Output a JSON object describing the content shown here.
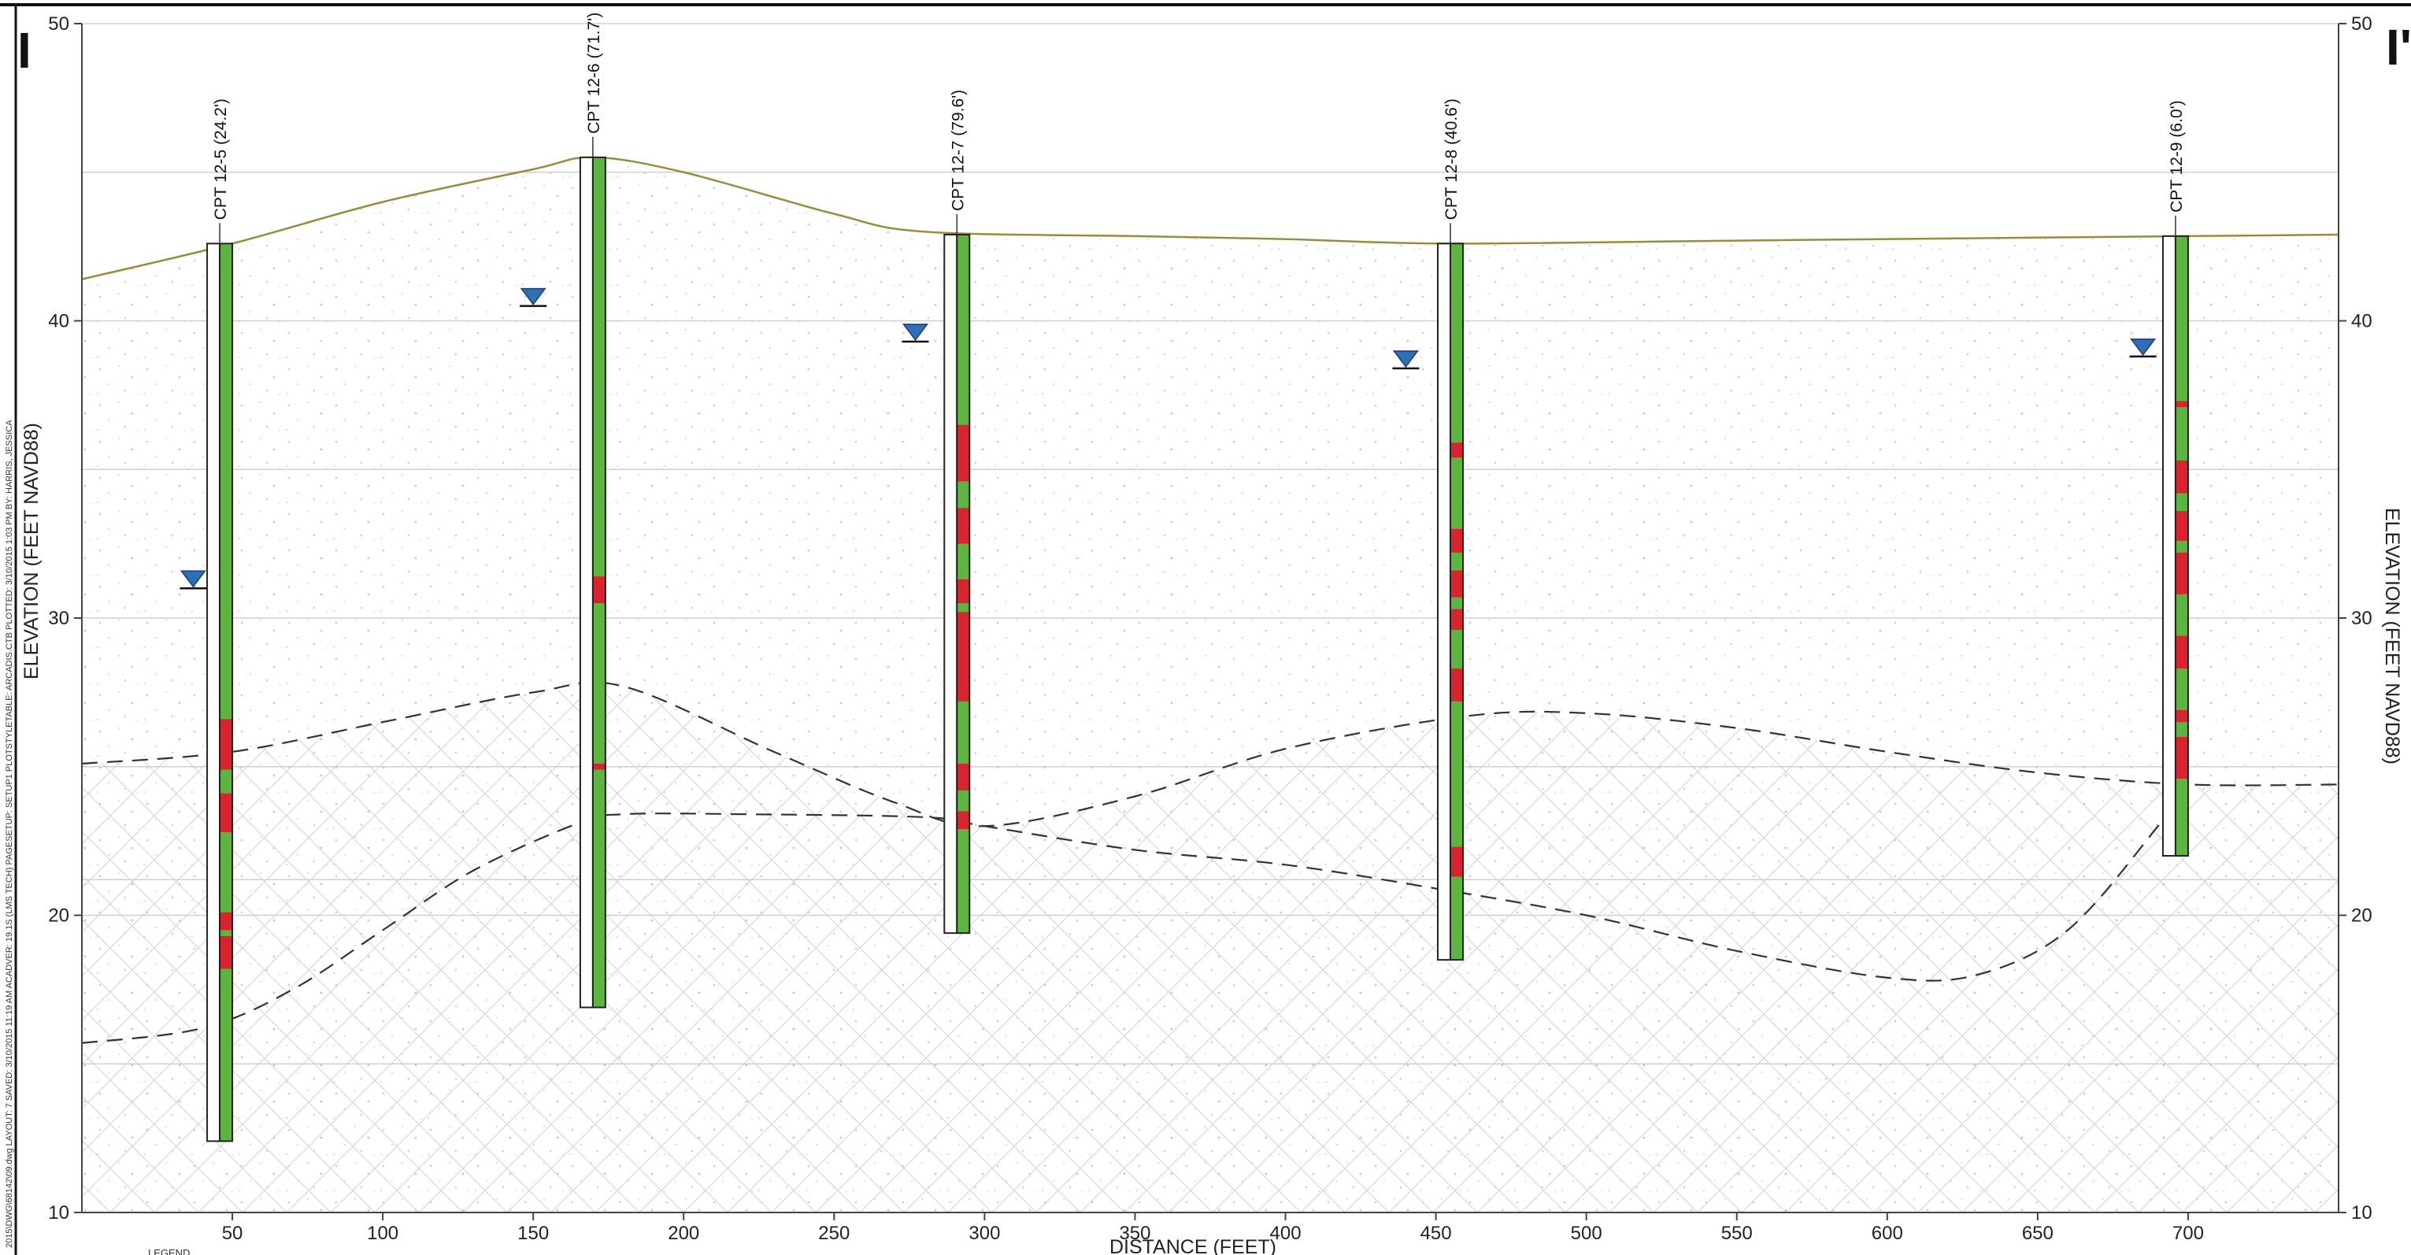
{
  "section": {
    "left_letter": "I",
    "right_letter": "I'",
    "left_axis_title": "ELEVATION (FEET NAVD88)",
    "right_axis_title": "ELEVATION (FEET NAVD88)",
    "x_axis_title": "DISTANCE (FEET)",
    "legend_label": "LEGEND",
    "margin_note": "2015\\DWG\\68142\\09.dwg   LAYOUT: 7   SAVED: 3/10/2015 11:19 AM   ACADVER: 19.1S (LMS TECH)   PAGESETUP: SETUP1   PLOTSTYLETABLE: ARCADIS.CTB   PLOTTED: 3/10/2015 1:03 PM   BY: HARRIS, JESSICA"
  },
  "colors": {
    "clay": "#d9232e",
    "sand": "#5cb53f",
    "ground": "#9a8c3c",
    "water_marker": "#2e6fb7",
    "grid": "#cfcfcf",
    "contact": "#333333"
  },
  "chart_data": {
    "type": "cross-section",
    "xlabel": "DISTANCE (FEET)",
    "ylabel": "ELEVATION (FEET NAVD88)",
    "xlim": [
      0,
      750
    ],
    "ylim": [
      10,
      50
    ],
    "x_ticks": [
      50,
      100,
      150,
      200,
      250,
      300,
      350,
      400,
      450,
      500,
      550,
      600,
      650,
      700
    ],
    "y_ticks": [
      10,
      20,
      30,
      40,
      50
    ],
    "y_gridlines": [
      15,
      20,
      21.2,
      25,
      30,
      35,
      40,
      45,
      50
    ],
    "ground_surface": [
      [
        0,
        41.4
      ],
      [
        50,
        42.6
      ],
      [
        100,
        44.0
      ],
      [
        150,
        45.1
      ],
      [
        170,
        45.5
      ],
      [
        200,
        45.0
      ],
      [
        250,
        43.6
      ],
      [
        280,
        43.0
      ],
      [
        350,
        42.85
      ],
      [
        400,
        42.75
      ],
      [
        455,
        42.6
      ],
      [
        550,
        42.7
      ],
      [
        650,
        42.8
      ],
      [
        700,
        42.85
      ],
      [
        750,
        42.9
      ]
    ],
    "contacts": [
      {
        "points": [
          [
            0,
            25.1
          ],
          [
            50,
            25.5
          ],
          [
            100,
            26.5
          ],
          [
            150,
            27.5
          ],
          [
            180,
            27.7
          ],
          [
            230,
            25.5
          ],
          [
            270,
            23.8
          ],
          [
            300,
            23.0
          ],
          [
            350,
            24.0
          ],
          [
            400,
            25.6
          ],
          [
            460,
            26.7
          ],
          [
            500,
            26.8
          ],
          [
            550,
            26.3
          ],
          [
            600,
            25.5
          ],
          [
            650,
            24.8
          ],
          [
            700,
            24.4
          ],
          [
            750,
            24.4
          ]
        ]
      },
      {
        "points": [
          [
            0,
            15.7
          ],
          [
            40,
            16.2
          ],
          [
            70,
            17.5
          ],
          [
            100,
            19.5
          ],
          [
            130,
            21.5
          ],
          [
            165,
            23.1
          ],
          [
            180,
            23.4
          ],
          [
            220,
            23.4
          ],
          [
            280,
            23.3
          ],
          [
            300,
            23.0
          ],
          [
            350,
            22.2
          ],
          [
            400,
            21.7
          ],
          [
            450,
            20.9
          ],
          [
            500,
            20.0
          ],
          [
            550,
            18.8
          ],
          [
            600,
            17.9
          ],
          [
            630,
            18.0
          ],
          [
            660,
            19.5
          ],
          [
            690,
            23.0
          ],
          [
            700,
            24.4
          ]
        ]
      }
    ],
    "water_levels": [
      {
        "x": 37,
        "elevation": 31.0
      },
      {
        "x": 150,
        "elevation": 40.5
      },
      {
        "x": 277,
        "elevation": 39.3
      },
      {
        "x": 440,
        "elevation": 38.4
      },
      {
        "x": 685,
        "elevation": 38.8
      }
    ],
    "cpts": [
      {
        "id": "CPT 12-5",
        "depth_text": "(24.2')",
        "x": 50,
        "top": 42.6,
        "bottom": 12.4,
        "clay_intervals": [
          [
            24.9,
            26.6
          ],
          [
            22.8,
            24.1
          ],
          [
            19.5,
            20.1
          ],
          [
            18.2,
            19.3
          ]
        ]
      },
      {
        "id": "CPT 12-6",
        "depth_text": "(71.7')",
        "x": 174,
        "top": 45.5,
        "bottom": 16.9,
        "clay_intervals": [
          [
            30.5,
            31.4
          ],
          [
            24.9,
            25.1
          ]
        ]
      },
      {
        "id": "CPT 12-7",
        "depth_text": "(79.6')",
        "x": 295,
        "top": 42.9,
        "bottom": 19.4,
        "clay_intervals": [
          [
            34.6,
            36.5
          ],
          [
            32.5,
            33.7
          ],
          [
            30.5,
            31.3
          ],
          [
            27.2,
            30.2
          ],
          [
            24.2,
            25.1
          ],
          [
            22.9,
            23.5
          ]
        ]
      },
      {
        "id": "CPT 12-8",
        "depth_text": "(40.6')",
        "x": 459,
        "top": 42.6,
        "bottom": 18.5,
        "clay_intervals": [
          [
            35.4,
            35.9
          ],
          [
            32.2,
            33.0
          ],
          [
            30.7,
            31.6
          ],
          [
            29.6,
            30.3
          ],
          [
            27.2,
            28.3
          ],
          [
            21.3,
            22.3
          ]
        ]
      },
      {
        "id": "CPT 12-9",
        "depth_text": "(6.0')",
        "x": 700,
        "top": 42.85,
        "bottom": 22.0,
        "clay_intervals": [
          [
            37.1,
            37.3
          ],
          [
            34.2,
            35.3
          ],
          [
            32.6,
            33.6
          ],
          [
            30.8,
            32.2
          ],
          [
            28.3,
            29.4
          ],
          [
            26.5,
            26.9
          ],
          [
            24.6,
            26.0
          ]
        ]
      }
    ]
  }
}
